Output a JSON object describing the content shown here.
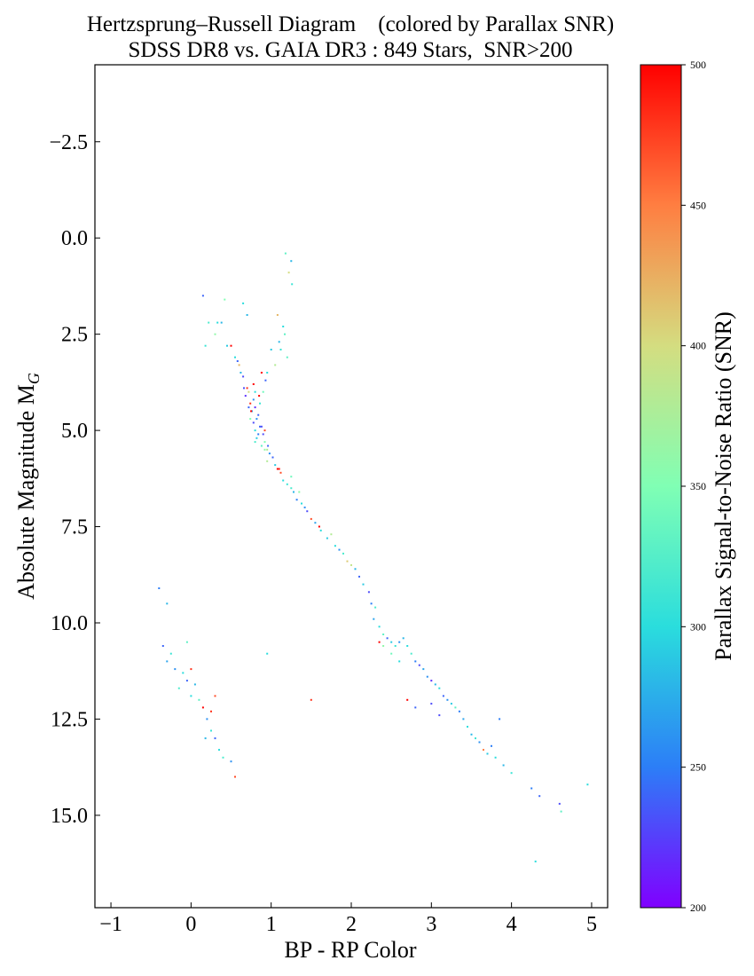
{
  "chart_data": {
    "type": "scatter",
    "title": "Hertzsprung–Russell Diagram    (colored by Parallax SNR)",
    "subtitle": "SDSS DR8 vs. GAIA DR3 : 849 Stars,  SNR>200",
    "xlabel": "BP - RP Color",
    "ylabel": "Absolute Magnitude M",
    "ylabel_subscript": "G",
    "xlim": [
      -1.2,
      5.2
    ],
    "ylim": [
      17.4,
      -4.5
    ],
    "y_inverted": true,
    "xticks": [
      -1,
      0,
      1,
      2,
      3,
      4,
      5
    ],
    "xtick_labels": [
      "−1",
      "0",
      "1",
      "2",
      "3",
      "4",
      "5"
    ],
    "yticks": [
      -2.5,
      0.0,
      2.5,
      5.0,
      7.5,
      10.0,
      12.5,
      15.0
    ],
    "ytick_labels": [
      "−2.5",
      "0.0",
      "2.5",
      "5.0",
      "7.5",
      "10.0",
      "12.5",
      "15.0"
    ],
    "grid": false,
    "colorbar": {
      "label": "Parallax Signal-to-Noise Ratio (SNR)",
      "colormap": "rainbow",
      "range": [
        200,
        500
      ],
      "ticks": [
        200,
        250,
        300,
        350,
        400,
        450,
        500
      ],
      "tick_labels": [
        "200",
        "250",
        "300",
        "350",
        "400",
        "450",
        "500"
      ],
      "colors": [
        "#8000ff",
        "#2c7ef7",
        "#2adddd",
        "#80ffb4",
        "#d4dd80",
        "#ff7e41",
        "#ff0000"
      ]
    },
    "points": [
      [
        1.18,
        0.4,
        330
      ],
      [
        1.25,
        0.6,
        280
      ],
      [
        1.22,
        0.9,
        400
      ],
      [
        1.26,
        1.2,
        310
      ],
      [
        0.15,
        1.5,
        240
      ],
      [
        0.42,
        1.6,
        350
      ],
      [
        0.65,
        1.7,
        300
      ],
      [
        0.7,
        2.0,
        280
      ],
      [
        1.08,
        2.0,
        420
      ],
      [
        0.22,
        2.2,
        320
      ],
      [
        0.33,
        2.2,
        300
      ],
      [
        0.38,
        2.2,
        280
      ],
      [
        0.3,
        2.5,
        360
      ],
      [
        1.15,
        2.3,
        300
      ],
      [
        0.18,
        2.8,
        310
      ],
      [
        0.45,
        2.8,
        290
      ],
      [
        0.5,
        2.8,
        500
      ],
      [
        1.17,
        2.5,
        330
      ],
      [
        1.1,
        2.7,
        280
      ],
      [
        1.0,
        2.9,
        290
      ],
      [
        1.12,
        2.9,
        310
      ],
      [
        1.2,
        3.1,
        330
      ],
      [
        0.55,
        3.1,
        300
      ],
      [
        0.58,
        3.2,
        240
      ],
      [
        0.6,
        3.3,
        420
      ],
      [
        1.05,
        3.3,
        380
      ],
      [
        0.62,
        3.5,
        280
      ],
      [
        0.95,
        3.5,
        300
      ],
      [
        0.88,
        3.5,
        500
      ],
      [
        0.65,
        3.6,
        230
      ],
      [
        0.93,
        3.7,
        240
      ],
      [
        0.66,
        3.9,
        230
      ],
      [
        0.7,
        3.9,
        480
      ],
      [
        0.8,
        4.0,
        300
      ],
      [
        0.9,
        4.0,
        340
      ],
      [
        0.68,
        4.1,
        220
      ],
      [
        0.74,
        4.3,
        480
      ],
      [
        0.78,
        4.2,
        260
      ],
      [
        0.86,
        4.3,
        310
      ],
      [
        0.72,
        4.4,
        240
      ],
      [
        0.76,
        4.5,
        270
      ],
      [
        0.8,
        4.4,
        220
      ],
      [
        0.84,
        4.6,
        240
      ],
      [
        0.74,
        4.7,
        350
      ],
      [
        0.78,
        4.8,
        230
      ],
      [
        0.82,
        4.7,
        260
      ],
      [
        0.86,
        4.9,
        240
      ],
      [
        0.88,
        4.9,
        230
      ],
      [
        0.8,
        5.0,
        300
      ],
      [
        0.84,
        5.1,
        250
      ],
      [
        0.9,
        5.1,
        230
      ],
      [
        0.82,
        5.2,
        290
      ],
      [
        0.92,
        5.3,
        350
      ],
      [
        0.96,
        5.4,
        240
      ],
      [
        0.88,
        5.4,
        330
      ],
      [
        0.92,
        5.5,
        360
      ],
      [
        0.98,
        5.6,
        260
      ],
      [
        0.95,
        5.8,
        380
      ],
      [
        1.02,
        5.7,
        240
      ],
      [
        1.05,
        5.9,
        290
      ],
      [
        1.08,
        6.0,
        500
      ],
      [
        1.1,
        6.0,
        490
      ],
      [
        1.12,
        6.1,
        470
      ],
      [
        1.15,
        6.3,
        300
      ],
      [
        1.2,
        6.4,
        310
      ],
      [
        1.25,
        6.5,
        320
      ],
      [
        1.28,
        6.6,
        280
      ],
      [
        1.32,
        6.8,
        250
      ],
      [
        1.38,
        6.9,
        300
      ],
      [
        1.42,
        7.0,
        260
      ],
      [
        1.45,
        7.1,
        230
      ],
      [
        1.5,
        7.3,
        470
      ],
      [
        1.55,
        7.4,
        270
      ],
      [
        1.62,
        7.6,
        300
      ],
      [
        1.7,
        7.8,
        290
      ],
      [
        1.75,
        7.7,
        380
      ],
      [
        1.8,
        8.0,
        300
      ],
      [
        1.85,
        8.1,
        260
      ],
      [
        1.9,
        8.2,
        320
      ],
      [
        1.95,
        8.4,
        410
      ],
      [
        2.05,
        8.6,
        280
      ],
      [
        2.1,
        8.8,
        240
      ],
      [
        2.15,
        9.0,
        290
      ],
      [
        2.22,
        9.2,
        230
      ],
      [
        2.25,
        9.5,
        250
      ],
      [
        2.3,
        9.6,
        320
      ],
      [
        2.28,
        9.9,
        270
      ],
      [
        2.35,
        10.1,
        300
      ],
      [
        2.4,
        10.3,
        330
      ],
      [
        2.45,
        10.4,
        240
      ],
      [
        2.5,
        10.5,
        290
      ],
      [
        2.55,
        10.6,
        310
      ],
      [
        2.6,
        10.5,
        260
      ],
      [
        2.65,
        10.4,
        280
      ],
      [
        2.7,
        10.6,
        300
      ],
      [
        2.5,
        10.8,
        340
      ],
      [
        2.4,
        10.6,
        360
      ],
      [
        2.75,
        10.8,
        320
      ],
      [
        2.8,
        11.0,
        250
      ],
      [
        2.85,
        11.1,
        230
      ],
      [
        2.9,
        11.2,
        270
      ],
      [
        2.6,
        11.0,
        300
      ],
      [
        2.95,
        11.4,
        260
      ],
      [
        3.0,
        11.5,
        220
      ],
      [
        3.05,
        11.6,
        280
      ],
      [
        3.1,
        11.7,
        300
      ],
      [
        3.15,
        11.9,
        240
      ],
      [
        3.2,
        12.0,
        260
      ],
      [
        3.25,
        12.1,
        290
      ],
      [
        3.3,
        12.2,
        330
      ],
      [
        3.35,
        12.3,
        250
      ],
      [
        3.0,
        12.1,
        230
      ],
      [
        3.4,
        12.5,
        270
      ],
      [
        3.45,
        12.7,
        300
      ],
      [
        3.5,
        12.9,
        280
      ],
      [
        3.55,
        13.0,
        310
      ],
      [
        3.6,
        13.1,
        260
      ],
      [
        3.65,
        13.3,
        450
      ],
      [
        3.7,
        13.4,
        290
      ],
      [
        3.75,
        13.2,
        250
      ],
      [
        3.8,
        13.5,
        300
      ],
      [
        3.9,
        13.7,
        280
      ],
      [
        4.0,
        13.9,
        310
      ],
      [
        4.25,
        14.3,
        250
      ],
      [
        4.35,
        14.5,
        240
      ],
      [
        4.6,
        14.7,
        230
      ],
      [
        4.62,
        14.9,
        330
      ],
      [
        4.95,
        14.2,
        300
      ],
      [
        4.3,
        16.2,
        300
      ],
      [
        2.8,
        12.2,
        240
      ],
      [
        3.1,
        12.4,
        230
      ],
      [
        3.85,
        12.5,
        250
      ],
      [
        2.7,
        12.0,
        500
      ],
      [
        1.5,
        12.0,
        480
      ],
      [
        0.95,
        10.8,
        300
      ],
      [
        -0.4,
        9.1,
        250
      ],
      [
        -0.3,
        9.5,
        280
      ],
      [
        -0.35,
        10.6,
        240
      ],
      [
        -0.25,
        10.8,
        310
      ],
      [
        -0.3,
        11.0,
        270
      ],
      [
        -0.2,
        11.2,
        260
      ],
      [
        -0.1,
        11.3,
        300
      ],
      [
        -0.05,
        11.5,
        240
      ],
      [
        0.0,
        11.2,
        480
      ],
      [
        0.05,
        11.6,
        280
      ],
      [
        -0.15,
        11.7,
        320
      ],
      [
        0.0,
        11.9,
        300
      ],
      [
        0.1,
        12.0,
        330
      ],
      [
        0.15,
        12.2,
        500
      ],
      [
        0.25,
        12.3,
        480
      ],
      [
        0.3,
        11.9,
        470
      ],
      [
        0.2,
        12.5,
        260
      ],
      [
        0.25,
        12.8,
        310
      ],
      [
        0.18,
        13.0,
        280
      ],
      [
        0.3,
        13.0,
        240
      ],
      [
        0.35,
        13.3,
        300
      ],
      [
        0.4,
        13.5,
        320
      ],
      [
        0.5,
        13.6,
        260
      ],
      [
        0.55,
        14.0,
        470
      ],
      [
        -0.05,
        10.5,
        330
      ],
      [
        0.85,
        4.1,
        500
      ],
      [
        0.75,
        4.5,
        500
      ],
      [
        0.92,
        5.0,
        470
      ],
      [
        0.78,
        3.8,
        500
      ],
      [
        1.25,
        6.2,
        340
      ],
      [
        1.35,
        6.6,
        360
      ],
      [
        1.6,
        7.5,
        500
      ],
      [
        2.35,
        10.5,
        500
      ],
      [
        0.8,
        5.3,
        320
      ],
      [
        0.72,
        4.0,
        400
      ],
      [
        0.95,
        5.5,
        380
      ],
      [
        2.0,
        8.5,
        390
      ]
    ]
  }
}
